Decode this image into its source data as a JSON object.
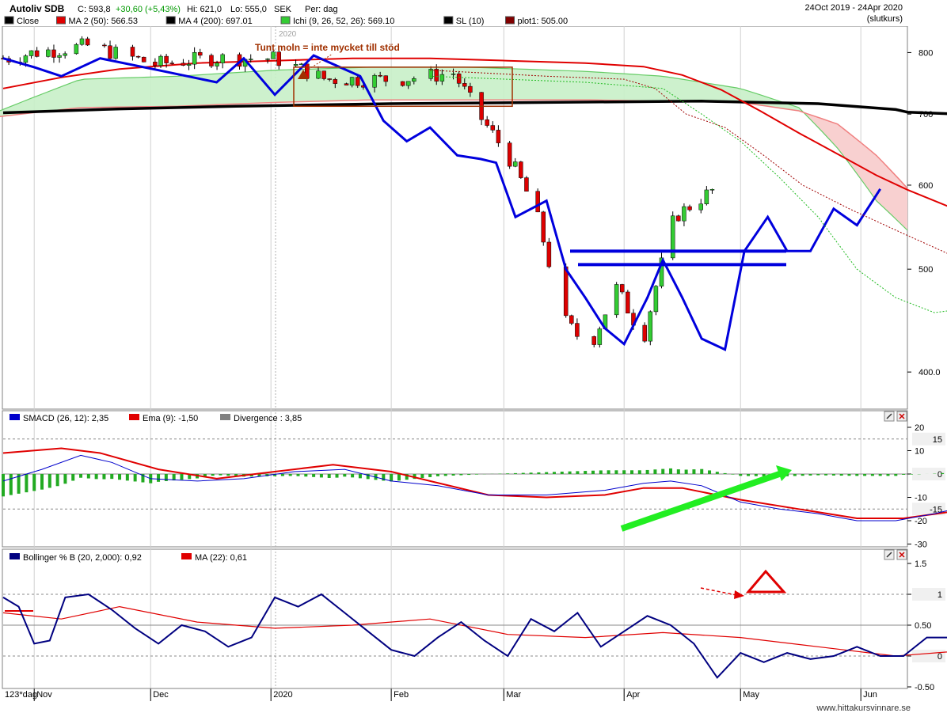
{
  "header": {
    "ticker": "Autoliv SDB",
    "close_text": "C: 593,8",
    "change_text": "+30,60 (+5,43%)",
    "hi_text": "Hi: 621,0",
    "lo_text": "Lo: 555,0",
    "currency": "SEK",
    "period": "Per: dag",
    "date_range": "24Oct 2019 - 24Apr 2020",
    "price_basis": "(slutkurs)"
  },
  "legend_main": [
    {
      "label": "Close",
      "color": "#000000"
    },
    {
      "label": "MA 2 (50): 566.53",
      "color": "#e00000"
    },
    {
      "label": "MA 4 (200): 697.01",
      "color": "#000000"
    },
    {
      "label": "Ichi (9, 26, 52, 26): 569.10",
      "color": "#33cc33"
    },
    {
      "label": "SL (10)",
      "color": "#000000"
    },
    {
      "label": "plot1: 505.00",
      "color": "#800000"
    }
  ],
  "legend_macd": [
    {
      "label": "SMACD (26, 12): 2,35",
      "color": "#0000cc"
    },
    {
      "label": "Ema (9): -1,50",
      "color": "#e00000"
    },
    {
      "label": "Divergence : 3,85",
      "color": "#808080"
    }
  ],
  "legend_boll": [
    {
      "label": "Bollinger % B (20, 2,000): 0,92",
      "color": "#000080"
    },
    {
      "label": "MA (22): 0,61",
      "color": "#e00000"
    }
  ],
  "annotations": {
    "cloud_note": "Tunt moln = inte mycket till stöd",
    "year_marker": "2020"
  },
  "x_axis": {
    "interval_label": "123*dag",
    "months": [
      "Nov",
      "Dec",
      "2020",
      "Feb",
      "Mar",
      "Apr",
      "May",
      "Jun"
    ]
  },
  "footer": {
    "watermark": "www.hittakursvinnare.se"
  },
  "colors": {
    "up": "#33cc33",
    "down": "#dd0000",
    "ma200": "#000000",
    "ma50": "#e00000",
    "blue_line": "#0000dd",
    "cloud_green": "#c8f0c8",
    "cloud_red": "#f8d0d0",
    "arrow": "#22ee22"
  },
  "chart_data": [
    {
      "type": "candlestick",
      "title": "Autoliv SDB",
      "y_scale": "log",
      "ylim": [
        380,
        840
      ],
      "y_ticks": [
        "400.0",
        "500",
        "600",
        "700",
        "800"
      ],
      "series_close_approx": [
        {
          "x": "2019-10-25",
          "y": 790
        },
        {
          "x": "2019-11-01",
          "y": 800
        },
        {
          "x": "2019-11-15",
          "y": 812
        },
        {
          "x": "2019-12-02",
          "y": 780
        },
        {
          "x": "2019-12-16",
          "y": 790
        },
        {
          "x": "2020-01-02",
          "y": 790
        },
        {
          "x": "2020-01-15",
          "y": 755
        },
        {
          "x": "2020-02-03",
          "y": 755
        },
        {
          "x": "2020-02-17",
          "y": 765
        },
        {
          "x": "2020-02-24",
          "y": 695
        },
        {
          "x": "2020-03-02",
          "y": 640
        },
        {
          "x": "2020-03-09",
          "y": 570
        },
        {
          "x": "2020-03-16",
          "y": 450
        },
        {
          "x": "2020-03-23",
          "y": 420
        },
        {
          "x": "2020-03-30",
          "y": 480
        },
        {
          "x": "2020-04-06",
          "y": 430
        },
        {
          "x": "2020-04-14",
          "y": 560
        },
        {
          "x": "2020-04-24",
          "y": 593.8
        }
      ],
      "lines": [
        {
          "name": "MA 4 (200)",
          "last": 697.01
        },
        {
          "name": "MA 2 (50)",
          "last": 566.53
        },
        {
          "name": "Ichi (9, 26, 52, 26)",
          "last": 569.1
        },
        {
          "name": "plot1",
          "last": 505.0
        }
      ],
      "horizontal_levels": [
        520,
        505
      ]
    },
    {
      "type": "line",
      "title": "SMACD (26, 12)",
      "ylim": [
        -30,
        20
      ],
      "y_ticks": [
        "20",
        "10",
        "0",
        "-10",
        "-20",
        "-30"
      ],
      "right_labels": [
        "15",
        "0",
        "-15"
      ],
      "last_values": {
        "smacd": 2.35,
        "ema": -1.5,
        "divergence": 3.85
      }
    },
    {
      "type": "line",
      "title": "Bollinger % B (20, 2,000)",
      "ylim": [
        -0.5,
        1.5
      ],
      "y_ticks": [
        "1.5",
        "1",
        "0.50",
        "0",
        "-0.50"
      ],
      "right_labels": [
        "1",
        "0"
      ],
      "last_values": {
        "percent_b": 0.92,
        "ma22": 0.61
      }
    }
  ]
}
